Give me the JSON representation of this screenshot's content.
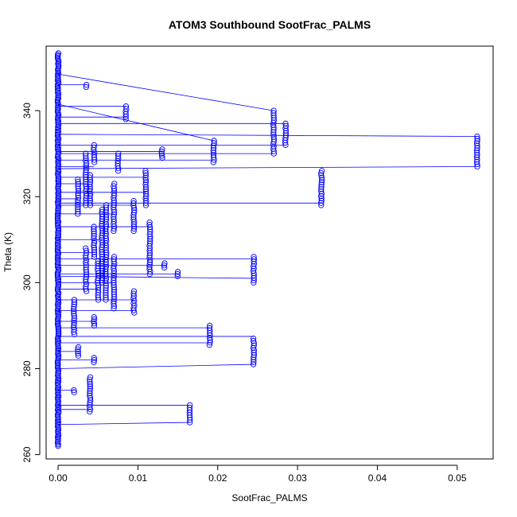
{
  "chart_data": {
    "type": "scatter",
    "title": "ATOM3 Southbound SootFrac_PALMS",
    "xlabel": "SootFrac_PALMS",
    "ylabel": "Theta (K)",
    "xlim": [
      -0.0015,
      0.0545
    ],
    "ylim": [
      259,
      355
    ],
    "x_ticks": [
      0.0,
      0.01,
      0.02,
      0.03,
      0.04,
      0.05
    ],
    "x_tick_labels": [
      "0.00",
      "0.01",
      "0.02",
      "0.03",
      "0.04",
      "0.05"
    ],
    "y_ticks": [
      260,
      280,
      300,
      320,
      340
    ],
    "y_tick_labels": [
      "260",
      "280",
      "300",
      "320",
      "340"
    ],
    "marker": "open-circle",
    "color": "#0000ff",
    "baseline_column": {
      "x": 0.0,
      "y_range": [
        262,
        353.5
      ]
    },
    "clusters": [
      {
        "x": 0.0035,
        "y_range": [
          345.5,
          346
        ]
      },
      {
        "x": 0.0085,
        "y_range": [
          338,
          341
        ]
      },
      {
        "x": 0.027,
        "y_range": [
          330,
          340
        ]
      },
      {
        "x": 0.0285,
        "y_range": [
          332,
          337
        ]
      },
      {
        "x": 0.0195,
        "y_range": [
          328,
          333
        ]
      },
      {
        "x": 0.0525,
        "y_range": [
          327,
          334
        ]
      },
      {
        "x": 0.033,
        "y_range": [
          318,
          326
        ]
      },
      {
        "x": 0.0045,
        "y_range": [
          328,
          332
        ]
      },
      {
        "x": 0.0035,
        "y_range": [
          318,
          330
        ]
      },
      {
        "x": 0.0025,
        "y_range": [
          316,
          324
        ]
      },
      {
        "x": 0.004,
        "y_range": [
          318,
          325
        ]
      },
      {
        "x": 0.007,
        "y_range": [
          312,
          323
        ]
      },
      {
        "x": 0.0075,
        "y_range": [
          326,
          330
        ]
      },
      {
        "x": 0.011,
        "y_range": [
          318,
          326
        ]
      },
      {
        "x": 0.013,
        "y_range": [
          329,
          331
        ]
      },
      {
        "x": 0.0095,
        "y_range": [
          312,
          319
        ]
      },
      {
        "x": 0.0115,
        "y_range": [
          302,
          314
        ]
      },
      {
        "x": 0.0055,
        "y_range": [
          300,
          317
        ]
      },
      {
        "x": 0.0045,
        "y_range": [
          306,
          313
        ]
      },
      {
        "x": 0.006,
        "y_range": [
          296,
          318
        ]
      },
      {
        "x": 0.005,
        "y_range": [
          296,
          305
        ]
      },
      {
        "x": 0.0035,
        "y_range": [
          298,
          308
        ]
      },
      {
        "x": 0.007,
        "y_range": [
          294,
          306
        ]
      },
      {
        "x": 0.0095,
        "y_range": [
          293,
          298
        ]
      },
      {
        "x": 0.0133,
        "y_range": [
          303.5,
          304.5
        ]
      },
      {
        "x": 0.015,
        "y_range": [
          301.5,
          302.5
        ]
      },
      {
        "x": 0.0245,
        "y_range": [
          300,
          306
        ]
      },
      {
        "x": 0.002,
        "y_range": [
          288,
          296
        ]
      },
      {
        "x": 0.0045,
        "y_range": [
          290,
          292
        ]
      },
      {
        "x": 0.0025,
        "y_range": [
          283,
          285
        ]
      },
      {
        "x": 0.0045,
        "y_range": [
          281.5,
          282.5
        ]
      },
      {
        "x": 0.019,
        "y_range": [
          285.5,
          290
        ]
      },
      {
        "x": 0.0245,
        "y_range": [
          281,
          287
        ]
      },
      {
        "x": 0.004,
        "y_range": [
          270,
          278
        ]
      },
      {
        "x": 0.002,
        "y_range": [
          274.5,
          275
        ]
      },
      {
        "x": 0.0165,
        "y_range": [
          267.5,
          271.5
        ]
      }
    ],
    "connectors": [
      [
        0.0,
        348.5,
        0.027,
        340
      ],
      [
        0.0,
        341.5,
        0.0195,
        333
      ],
      [
        0.0,
        337,
        0.0285,
        337
      ],
      [
        0.0,
        334.5,
        0.0525,
        334
      ],
      [
        0.0,
        332,
        0.0285,
        332
      ],
      [
        0.0,
        330,
        0.027,
        330
      ],
      [
        0.0,
        326.5,
        0.0525,
        327
      ],
      [
        0.0,
        318.5,
        0.033,
        318.5
      ],
      [
        0.0,
        305.5,
        0.0245,
        305.5
      ],
      [
        0.0,
        301.5,
        0.0245,
        301
      ],
      [
        0.0,
        289.5,
        0.019,
        289.5
      ],
      [
        0.0,
        287.5,
        0.0245,
        287.5
      ],
      [
        0.0,
        286,
        0.019,
        286
      ],
      [
        0.0,
        280,
        0.0245,
        281
      ],
      [
        0.0,
        271.5,
        0.0165,
        271.5
      ],
      [
        0.0,
        267,
        0.0165,
        267.5
      ],
      [
        0.0,
        346,
        0.0035,
        346
      ],
      [
        0.0,
        341,
        0.0085,
        341
      ],
      [
        0.0,
        338.5,
        0.0085,
        338.5
      ],
      [
        0.0,
        330.5,
        0.013,
        330.5
      ],
      [
        0.0,
        328.5,
        0.0195,
        328.5
      ],
      [
        0.0,
        324.5,
        0.011,
        324.5
      ],
      [
        0.0,
        321,
        0.011,
        321
      ],
      [
        0.0,
        318,
        0.0095,
        318
      ],
      [
        0.0,
        313,
        0.0115,
        313
      ],
      [
        0.0,
        310,
        0.0055,
        310
      ],
      [
        0.0,
        304,
        0.0133,
        304
      ],
      [
        0.0,
        302,
        0.015,
        302
      ],
      [
        0.0,
        300,
        0.007,
        300
      ],
      [
        0.0,
        296,
        0.0095,
        296
      ],
      [
        0.0,
        293.5,
        0.0095,
        293.5
      ],
      [
        0.0,
        291,
        0.0045,
        291
      ],
      [
        0.0,
        284,
        0.0025,
        284
      ],
      [
        0.0,
        282,
        0.0045,
        282
      ],
      [
        0.0,
        275,
        0.002,
        275
      ],
      [
        0.0,
        270.5,
        0.004,
        270.5
      ],
      [
        0.0,
        327,
        0.0045,
        327
      ],
      [
        0.0,
        323,
        0.0035,
        323
      ],
      [
        0.0,
        319.5,
        0.0025,
        319.5
      ],
      [
        0.0,
        316,
        0.007,
        316
      ],
      [
        0.0,
        307,
        0.0045,
        307
      ],
      [
        0.0,
        298.5,
        0.005,
        298.5
      ]
    ]
  }
}
